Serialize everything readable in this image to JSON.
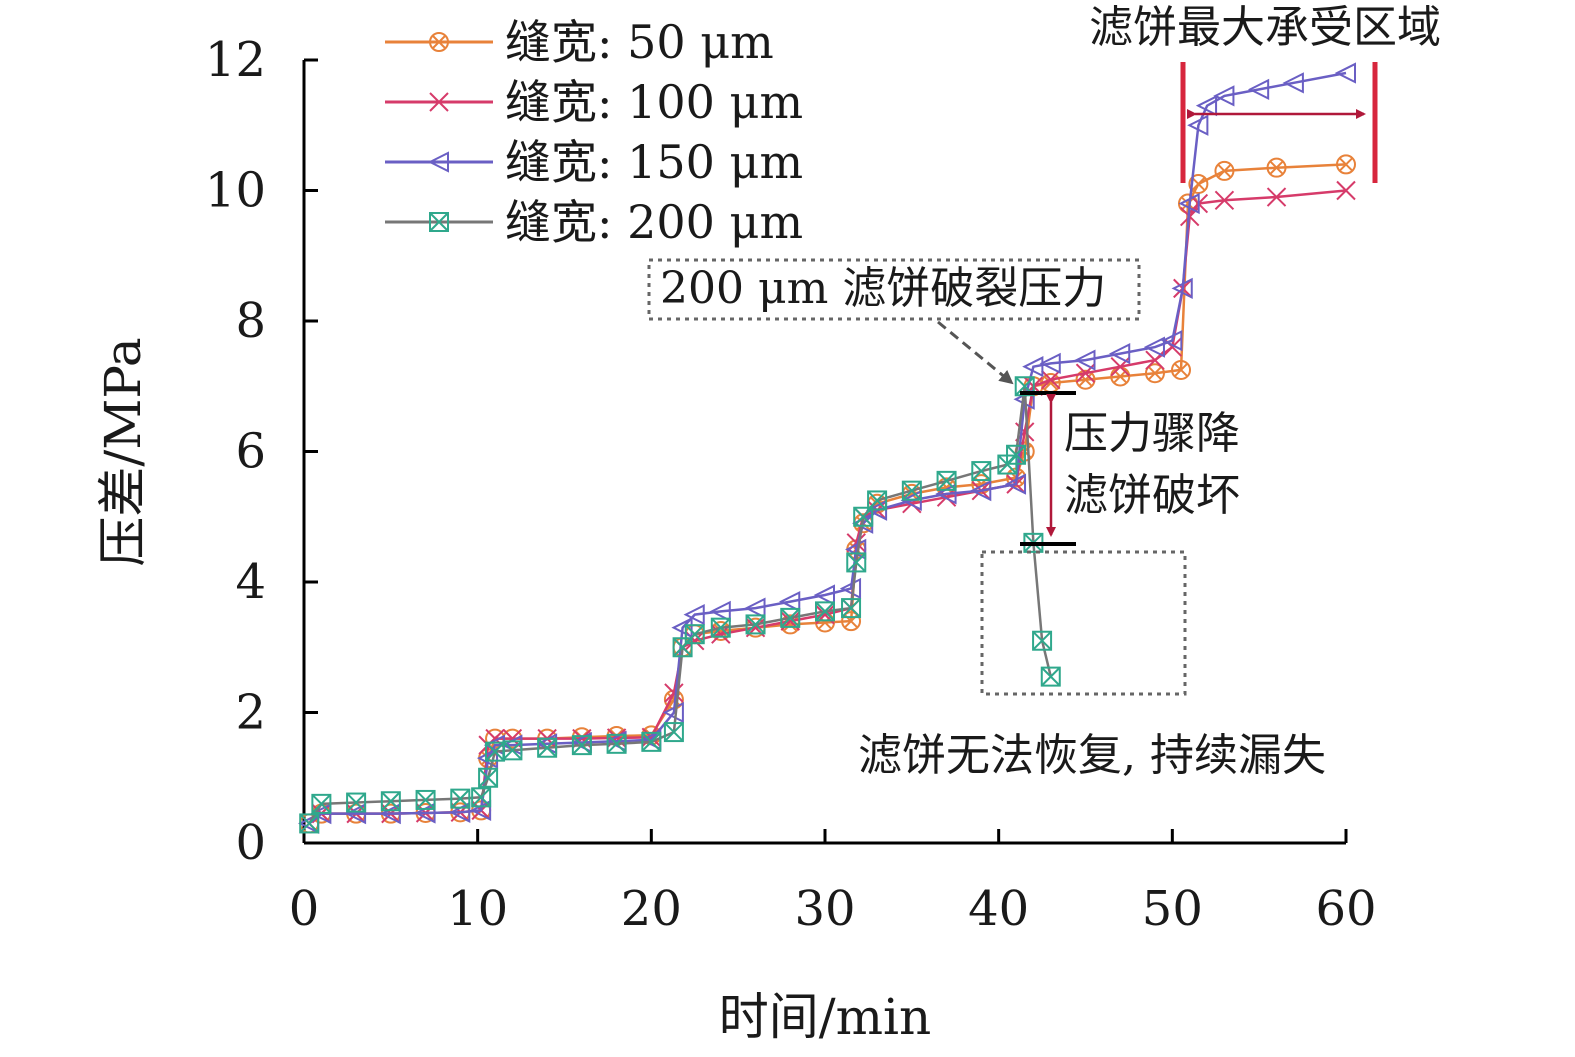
{
  "chart_data": {
    "type": "line",
    "xlabel": "时间/min",
    "ylabel": "压差/MPa",
    "xlim": [
      0,
      60
    ],
    "ylim": [
      0,
      12
    ],
    "xticks": [
      0,
      10,
      20,
      30,
      40,
      50,
      60
    ],
    "yticks": [
      0,
      2,
      4,
      6,
      8,
      10,
      12
    ],
    "grid": false,
    "legend_position": "top-left",
    "series": [
      {
        "name": "缝宽: 50 μm",
        "color": "#e8823a",
        "marker": "circle-x",
        "x": [
          0.3,
          1,
          3,
          5,
          7,
          9,
          10.2,
          10.6,
          11,
          12,
          14,
          16,
          18,
          20,
          21.3,
          21.8,
          22.5,
          24,
          26,
          28,
          30,
          31.5,
          31.8,
          32.2,
          33,
          35,
          37,
          39,
          41,
          41.5,
          42,
          43,
          45,
          47,
          49,
          50.5,
          50.9,
          51.5,
          53,
          56,
          60
        ],
        "y": [
          0.3,
          0.45,
          0.45,
          0.45,
          0.46,
          0.47,
          0.5,
          1.3,
          1.6,
          1.6,
          1.6,
          1.62,
          1.64,
          1.65,
          2.2,
          3.0,
          3.2,
          3.25,
          3.3,
          3.35,
          3.38,
          3.4,
          4.5,
          4.9,
          5.2,
          5.35,
          5.45,
          5.5,
          5.6,
          6.0,
          7.0,
          7.05,
          7.1,
          7.15,
          7.2,
          7.25,
          9.8,
          10.1,
          10.3,
          10.35,
          10.4
        ]
      },
      {
        "name": "缝宽: 100 μm",
        "color": "#d63b6a",
        "marker": "x",
        "x": [
          0.3,
          1,
          3,
          5,
          7,
          9,
          10.2,
          10.6,
          11,
          12,
          14,
          16,
          18,
          20,
          21.3,
          21.8,
          22.5,
          24,
          26,
          28,
          30,
          31.5,
          31.8,
          32.2,
          33,
          35,
          37,
          39,
          41,
          41.5,
          42,
          43,
          45,
          47,
          49,
          50,
          50.6,
          51,
          51.5,
          53,
          56,
          60
        ],
        "y": [
          0.3,
          0.45,
          0.45,
          0.45,
          0.46,
          0.47,
          0.5,
          1.5,
          1.6,
          1.6,
          1.6,
          1.6,
          1.61,
          1.62,
          2.3,
          3.0,
          3.1,
          3.2,
          3.3,
          3.4,
          3.5,
          3.6,
          4.6,
          5.0,
          5.1,
          5.2,
          5.3,
          5.4,
          5.5,
          6.3,
          7.0,
          7.1,
          7.2,
          7.3,
          7.4,
          7.6,
          8.5,
          9.6,
          9.8,
          9.85,
          9.9,
          10.0
        ]
      },
      {
        "name": "缝宽: 150 μm",
        "color": "#6a5fc4",
        "marker": "triangle-left",
        "x": [
          0.3,
          1,
          3,
          5,
          7,
          9,
          10.2,
          10.6,
          11,
          12,
          14,
          16,
          18,
          20,
          21.3,
          21.8,
          22.5,
          24,
          26,
          28,
          30,
          31.5,
          31.8,
          32.2,
          33,
          35,
          37,
          39,
          41,
          41.5,
          42,
          43,
          45,
          47,
          49,
          50,
          50.6,
          51,
          51.5,
          52,
          53,
          55,
          57,
          60
        ],
        "y": [
          0.3,
          0.45,
          0.45,
          0.45,
          0.46,
          0.47,
          0.5,
          1.3,
          1.5,
          1.5,
          1.52,
          1.54,
          1.56,
          1.58,
          2.0,
          3.3,
          3.5,
          3.55,
          3.6,
          3.7,
          3.8,
          3.9,
          4.5,
          4.9,
          5.1,
          5.25,
          5.35,
          5.4,
          5.5,
          6.8,
          7.3,
          7.35,
          7.4,
          7.5,
          7.6,
          7.7,
          8.5,
          9.8,
          11.0,
          11.3,
          11.45,
          11.55,
          11.65,
          11.8
        ]
      },
      {
        "name": "缝宽: 200 μm",
        "color": "#2fa88c",
        "marker": "box-x",
        "x": [
          0.3,
          1,
          3,
          5,
          7,
          9,
          10.2,
          10.6,
          11,
          12,
          14,
          16,
          18,
          20,
          21.3,
          21.8,
          22.5,
          24,
          26,
          28,
          30,
          31.5,
          31.8,
          32.2,
          33,
          35,
          37,
          39,
          40.5,
          41,
          41.5,
          42,
          42.5,
          43
        ],
        "y": [
          0.3,
          0.6,
          0.62,
          0.64,
          0.66,
          0.68,
          0.7,
          1.0,
          1.4,
          1.42,
          1.46,
          1.5,
          1.52,
          1.55,
          1.7,
          3.0,
          3.2,
          3.3,
          3.35,
          3.45,
          3.55,
          3.6,
          4.3,
          5.0,
          5.25,
          5.4,
          5.55,
          5.7,
          5.8,
          5.95,
          7.0,
          4.6,
          3.1,
          2.55
        ]
      }
    ],
    "annotations": {
      "bearing_region": "滤饼最大承受区域",
      "rupture_pressure": "200 μm 滤饼破裂压力",
      "pressure_drop_line1": "压力骤降",
      "pressure_drop_line2": "滤饼破坏",
      "unrecoverable": "滤饼无法恢复, 持续漏失"
    },
    "annotation_colors": {
      "bracket": "#d7263d",
      "arrow": "#b0183a",
      "box": "#666666"
    }
  }
}
